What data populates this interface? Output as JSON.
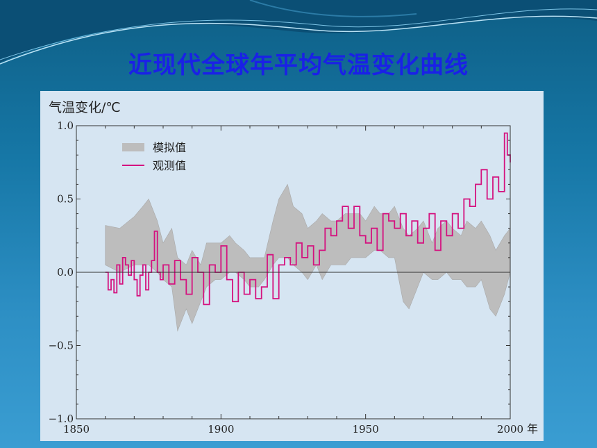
{
  "slide_title": "近现代全球年平均气温变化曲线",
  "colors": {
    "title": "#1a21e6",
    "observed": "#d4127f",
    "simulated": "#bdbdbd",
    "panel": "#d6e5f2"
  },
  "chart_data": {
    "type": "line",
    "ylabel": "气温变化/℃",
    "xlabel": "年",
    "xlim": [
      1850,
      2000
    ],
    "ylim": [
      -1.0,
      1.0
    ],
    "x_ticks": [
      "1850",
      "1900",
      "1950",
      "2000"
    ],
    "y_ticks": [
      "1.0",
      "0.5",
      "0.0",
      "−0.5",
      "−1.0"
    ],
    "legend_position": "top-left",
    "series": [
      {
        "name": "模拟值",
        "kind": "band",
        "x": [
          1860,
          1865,
          1870,
          1873,
          1875,
          1878,
          1880,
          1883,
          1885,
          1888,
          1890,
          1893,
          1895,
          1898,
          1900,
          1903,
          1905,
          1908,
          1910,
          1913,
          1915,
          1918,
          1920,
          1923,
          1925,
          1928,
          1930,
          1933,
          1935,
          1938,
          1940,
          1943,
          1945,
          1948,
          1950,
          1953,
          1955,
          1958,
          1960,
          1963,
          1965,
          1968,
          1970,
          1973,
          1975,
          1978,
          1980,
          1983,
          1985,
          1988,
          1990,
          1993,
          1995,
          1998,
          2000
        ],
        "upper": [
          0.32,
          0.3,
          0.38,
          0.45,
          0.5,
          0.35,
          0.2,
          0.3,
          0.1,
          0.05,
          0.15,
          0.05,
          0.2,
          0.2,
          0.2,
          0.25,
          0.2,
          0.15,
          0.1,
          0.1,
          0.1,
          0.35,
          0.5,
          0.6,
          0.45,
          0.4,
          0.3,
          0.35,
          0.4,
          0.35,
          0.35,
          0.4,
          0.4,
          0.4,
          0.35,
          0.45,
          0.4,
          0.4,
          0.45,
          0.3,
          0.25,
          0.3,
          0.35,
          0.2,
          0.3,
          0.35,
          0.3,
          0.25,
          0.35,
          0.3,
          0.35,
          0.25,
          0.15,
          0.25,
          0.3
        ],
        "lower": [
          0.05,
          0.0,
          0.05,
          0.05,
          0.05,
          0.0,
          -0.05,
          -0.1,
          -0.4,
          -0.25,
          -0.35,
          -0.2,
          -0.1,
          -0.05,
          -0.05,
          0.0,
          0.0,
          -0.05,
          -0.1,
          -0.1,
          -0.05,
          0.05,
          0.1,
          0.1,
          0.05,
          0.0,
          -0.05,
          0.05,
          -0.05,
          0.05,
          0.05,
          0.05,
          0.1,
          0.1,
          0.1,
          0.15,
          0.15,
          0.1,
          0.1,
          -0.2,
          -0.25,
          -0.1,
          0.0,
          -0.05,
          -0.05,
          0.0,
          -0.05,
          -0.05,
          -0.1,
          -0.1,
          -0.05,
          -0.25,
          -0.3,
          -0.15,
          0.0
        ]
      },
      {
        "name": "观测值",
        "kind": "line",
        "x": [
          1860,
          1861,
          1862,
          1863,
          1864,
          1865,
          1866,
          1867,
          1868,
          1869,
          1870,
          1871,
          1872,
          1873,
          1874,
          1875,
          1876,
          1877,
          1878,
          1879,
          1880,
          1882,
          1884,
          1886,
          1888,
          1890,
          1892,
          1894,
          1896,
          1898,
          1900,
          1902,
          1904,
          1906,
          1908,
          1910,
          1912,
          1914,
          1916,
          1918,
          1920,
          1922,
          1924,
          1926,
          1928,
          1930,
          1932,
          1934,
          1936,
          1938,
          1940,
          1942,
          1944,
          1946,
          1948,
          1950,
          1952,
          1954,
          1956,
          1958,
          1960,
          1962,
          1964,
          1966,
          1968,
          1970,
          1972,
          1974,
          1976,
          1978,
          1980,
          1982,
          1984,
          1986,
          1988,
          1990,
          1992,
          1994,
          1996,
          1998,
          1999,
          2000
        ],
        "values": [
          0.0,
          -0.12,
          -0.05,
          -0.14,
          0.05,
          -0.08,
          0.1,
          0.05,
          -0.02,
          0.08,
          -0.05,
          -0.16,
          -0.02,
          0.05,
          -0.12,
          0.0,
          0.08,
          0.28,
          0.0,
          -0.05,
          0.05,
          -0.08,
          0.08,
          -0.05,
          -0.15,
          0.1,
          0.0,
          -0.22,
          0.05,
          0.0,
          0.18,
          -0.05,
          -0.2,
          0.0,
          -0.15,
          -0.05,
          -0.18,
          -0.1,
          0.12,
          -0.18,
          0.05,
          0.1,
          0.05,
          0.2,
          0.1,
          0.18,
          0.05,
          0.15,
          0.3,
          0.25,
          0.35,
          0.45,
          0.3,
          0.45,
          0.25,
          0.2,
          0.3,
          0.15,
          0.4,
          0.35,
          0.3,
          0.4,
          0.25,
          0.35,
          0.2,
          0.3,
          0.4,
          0.15,
          0.35,
          0.25,
          0.4,
          0.3,
          0.5,
          0.45,
          0.6,
          0.7,
          0.5,
          0.65,
          0.55,
          0.95,
          0.8,
          0.75
        ]
      }
    ]
  }
}
